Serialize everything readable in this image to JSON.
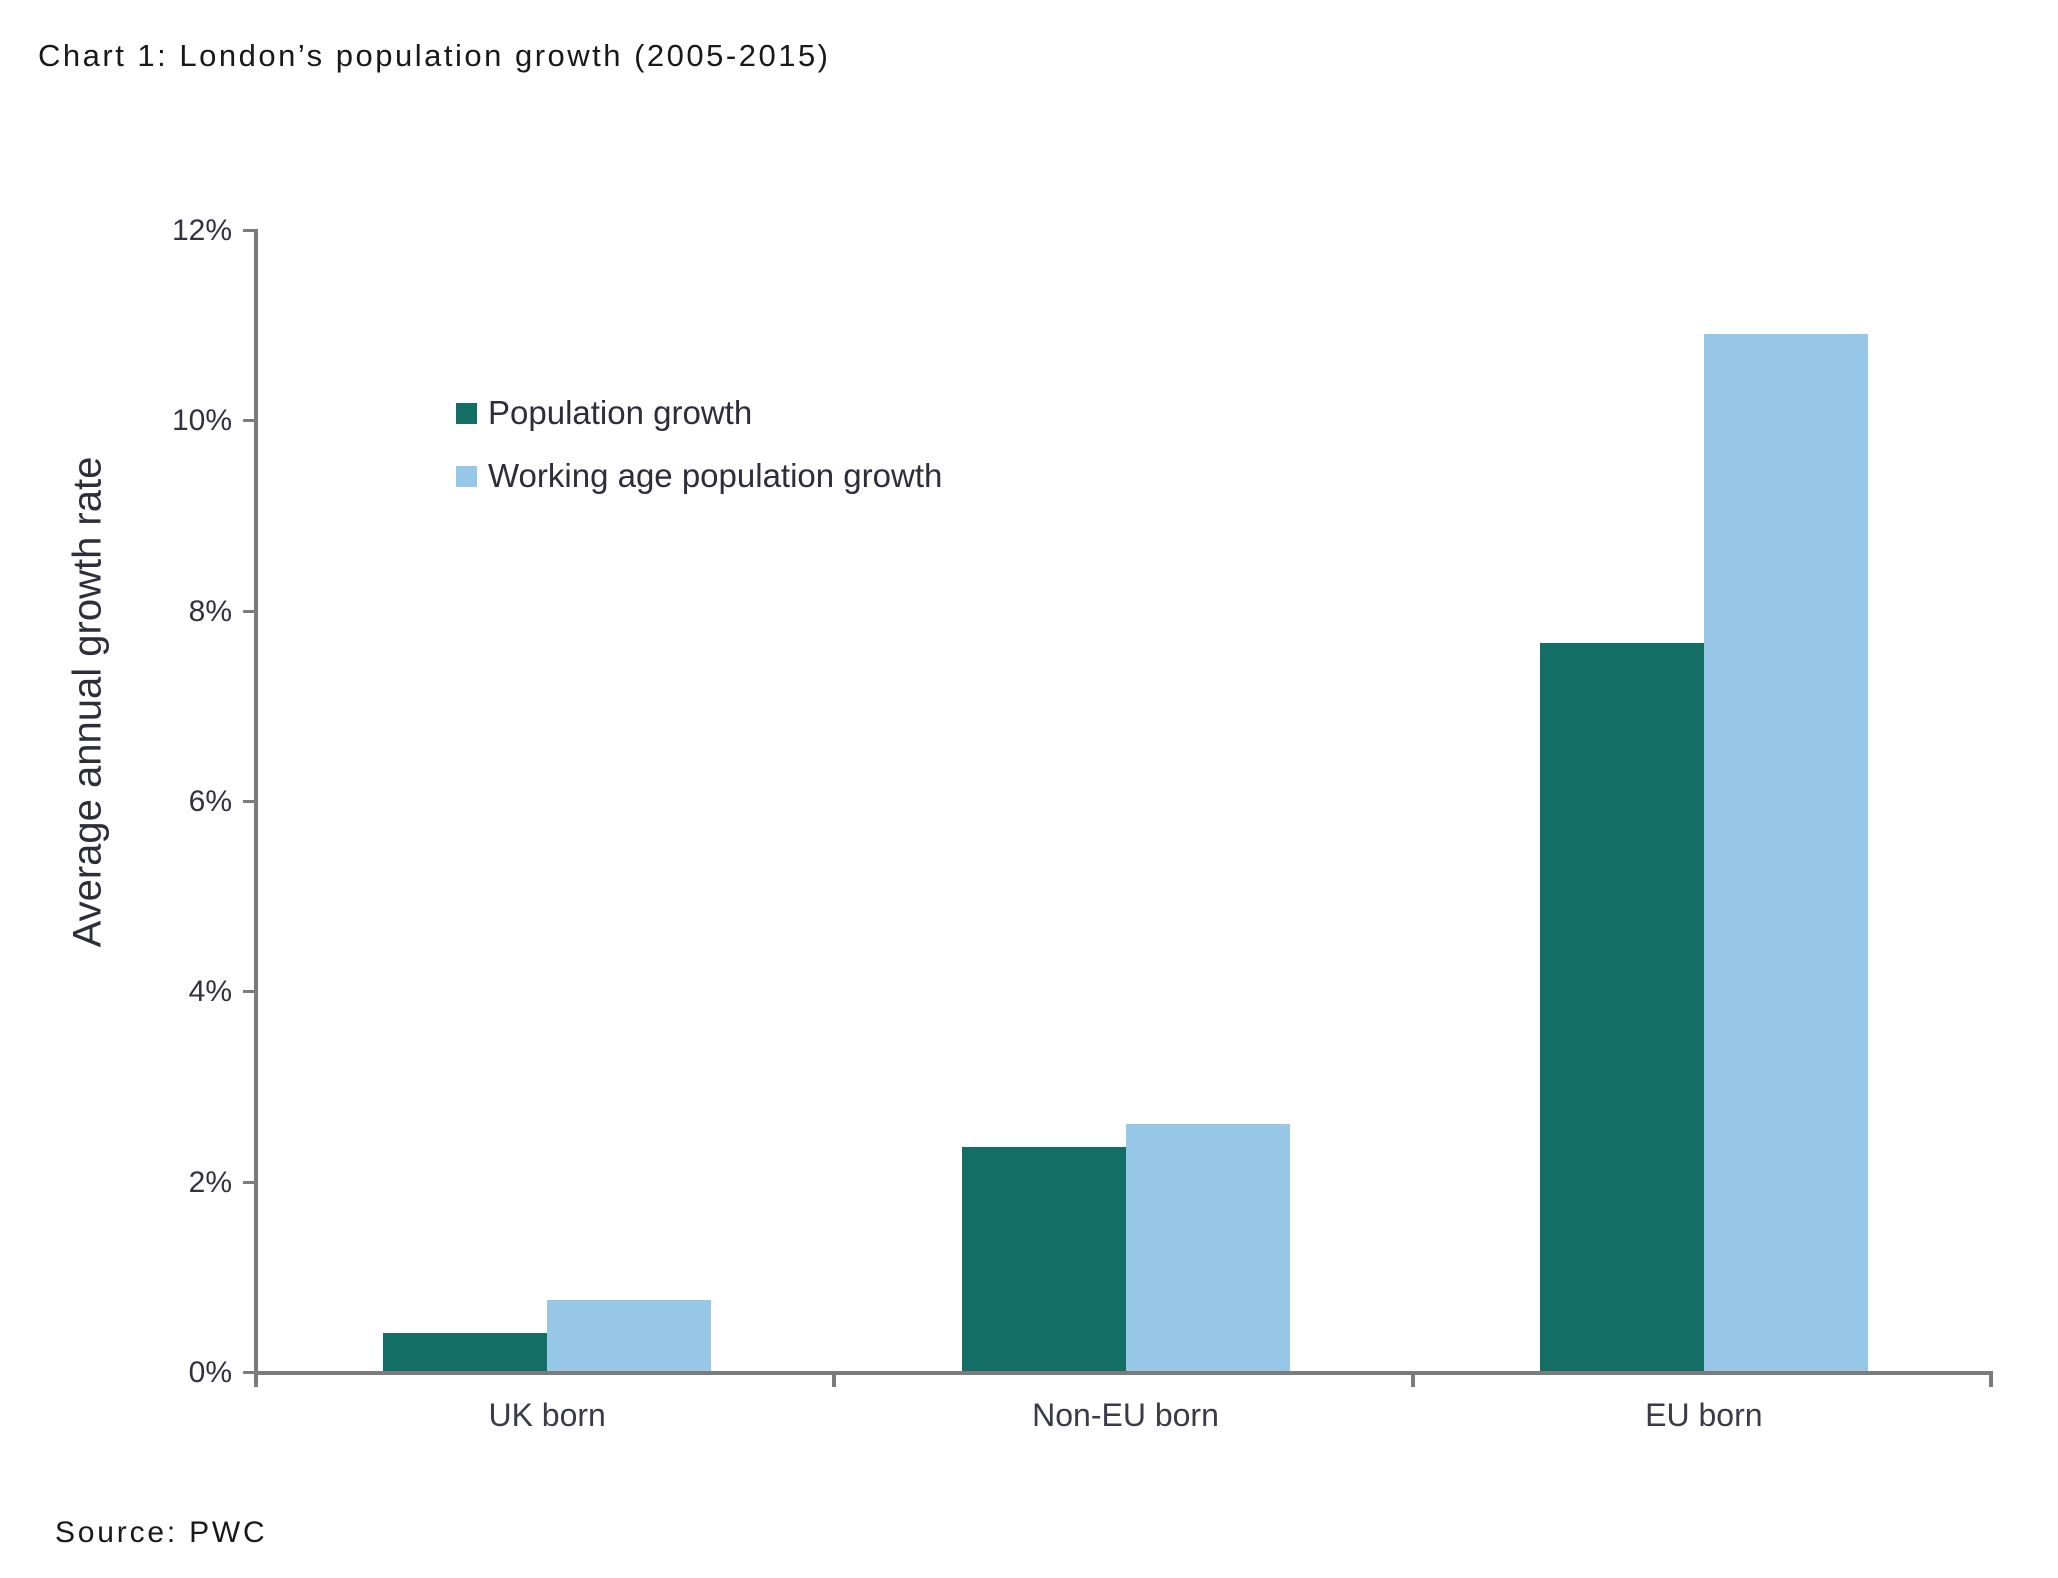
{
  "title": "Chart 1: London’s population growth (2005-2015)",
  "source": "Source: PWC",
  "colors": {
    "axis": "#7b7b7b",
    "title_text": "#191919",
    "tick_text": "#32323e"
  },
  "chart_data": {
    "type": "bar",
    "title": "Chart 1: London’s population growth (2005-2015)",
    "categories": [
      "UK born",
      "Non-EU born",
      "EU born"
    ],
    "series": [
      {
        "name": "Population growth",
        "color": "#136e65",
        "values": [
          0.4,
          2.35,
          7.65
        ]
      },
      {
        "name": "Working age population growth",
        "color": "#97c7e6",
        "values": [
          0.75,
          2.6,
          10.9
        ]
      }
    ],
    "xlabel": "",
    "ylabel": "Average annual growth rate",
    "ylim": [
      0,
      12
    ],
    "yticks": [
      {
        "value": 0,
        "label": "0%"
      },
      {
        "value": 2,
        "label": "2%"
      },
      {
        "value": 4,
        "label": "4%"
      },
      {
        "value": 6,
        "label": "6%"
      },
      {
        "value": 8,
        "label": "8%"
      },
      {
        "value": 10,
        "label": "10%"
      },
      {
        "value": 12,
        "label": "12%"
      }
    ],
    "grid": false,
    "legend_position": "upper-left-inside",
    "source": "Source: PWC"
  }
}
